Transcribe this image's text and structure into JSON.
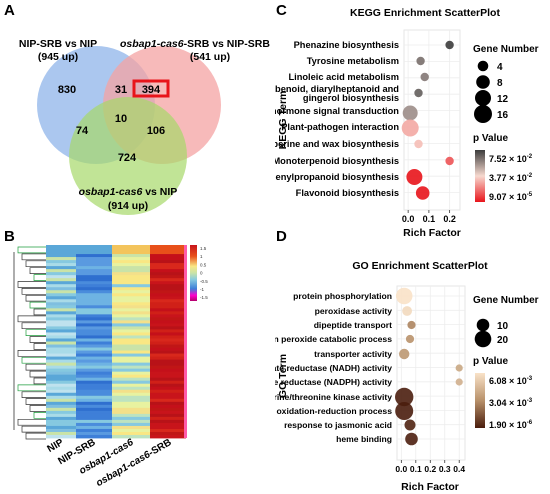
{
  "panels": {
    "A": "A",
    "B": "B",
    "C": "C",
    "D": "D"
  },
  "chart_data": [
    {
      "type": "venn",
      "panel": "A",
      "sets": [
        {
          "name_parts": [
            "NIP-SRB vs NIP"
          ],
          "count_label": "(945 up)",
          "color": "#8fb4ea"
        },
        {
          "name_parts": [
            "osbap1-cas6",
            "-SRB vs NIP-SRB"
          ],
          "count_label": "(541 up)",
          "color": "#f4a3a3"
        },
        {
          "name_parts": [
            "osbap1-cas6",
            " vs NIP"
          ],
          "count_label": "(914 up)",
          "color": "#a6d96a"
        }
      ],
      "regions": {
        "A_only": "830",
        "AB": "31",
        "B_only": "394",
        "ABC": "10",
        "AC": "74",
        "BC": "106",
        "C_only": "724"
      },
      "highlight_region": "B_only",
      "highlight_color": "#e8141b"
    },
    {
      "type": "heatmap",
      "panel": "B",
      "columns": [
        "NIP",
        "NIP-SRB",
        "osbap1-cas6",
        "osbap1-cas6-SRB"
      ],
      "column_italic": [
        false,
        false,
        true,
        "osbap1-cas6"
      ],
      "scale_ticks": [
        "1.5",
        "1",
        "0.5",
        "0",
        "-0.5",
        "-1",
        "-1.5"
      ],
      "colormap": [
        "#b3006b",
        "#ff00cc",
        "#3e7fd8",
        "#86c9e0",
        "#c9e3a8",
        "#f9e784",
        "#e8501a",
        "#c8141b"
      ],
      "dendrogram_color": "#1e9e3c"
    },
    {
      "type": "scatter",
      "panel": "C",
      "title": "KEGG Enrichment ScatterPlot",
      "xlabel": "Rich Factor",
      "ylabel": "KEGG Term",
      "xlim": [
        -0.02,
        0.25
      ],
      "xticks": [
        "0.0",
        "0.1",
        "0.2"
      ],
      "xtick_values": [
        0.0,
        0.1,
        0.2
      ],
      "terms": [
        "Phenazine biosynthesis",
        "Tyrosine metabolism",
        "Linoleic acid metabolism",
        "Stilbenoid, diarylheptanoid and",
        "gingerol biosynthesis",
        "Plant hormone signal transduction",
        "Plant-pathogen interaction",
        "Cutin,suberine and wax biosynthesis",
        "Monoterpenoid biosynthesis",
        "Phenylpropanoid biosynthesis",
        "Flavonoid biosynthesis"
      ],
      "points": [
        {
          "x": 0.2,
          "gene": 2,
          "p": 0.074
        },
        {
          "x": 0.06,
          "gene": 2,
          "p": 0.062
        },
        {
          "x": 0.08,
          "gene": 2,
          "p": 0.06
        },
        {
          "x": 0.05,
          "gene": 2,
          "p": 0.066
        },
        {
          "x": 0.01,
          "gene": 10,
          "p": 0.055
        },
        {
          "x": 0.01,
          "gene": 14,
          "p": 0.028
        },
        {
          "x": 0.05,
          "gene": 2,
          "p": 0.032
        },
        {
          "x": 0.2,
          "gene": 2,
          "p": 0.012
        },
        {
          "x": 0.03,
          "gene": 12,
          "p": 0.0001
        },
        {
          "x": 0.07,
          "gene": 8,
          "p": 0.0001
        }
      ],
      "size_legend_title": "Gene Number",
      "size_legend": [
        4,
        8,
        12,
        16
      ],
      "color_legend_title": "p Value",
      "color_legend_labels": [
        "7.52 × 10",
        "3.77 × 10",
        "9.07 × 10"
      ],
      "color_legend_exponents": [
        "-2",
        "-2",
        "-5"
      ],
      "color_low": "#e8141b",
      "color_mid": "#f7d9cf",
      "color_high": "#3c3c3c"
    },
    {
      "type": "scatter",
      "panel": "D",
      "title": "GO Enrichment ScatterPlot",
      "xlabel": "Rich Factor",
      "ylabel": "GO Term",
      "xlim": [
        -0.03,
        0.44
      ],
      "xticks": [
        "0.0",
        "0.1",
        "0.2",
        "0.3",
        "0.4"
      ],
      "xtick_values": [
        0.0,
        0.1,
        0.2,
        0.3,
        0.4
      ],
      "terms": [
        "protein phosphorylation",
        "peroxidase activity",
        "dipeptide transport",
        "hydrogen peroxide catabolic process",
        "transporter activity",
        "nitrate reductase (NADH) activity",
        "nitrate reductase (NADPH) activity",
        "protein serine/threonine kinase activity",
        "oxidation-reduction process",
        "response to jasmonic acid",
        "heme binding"
      ],
      "points": [
        {
          "x": 0.02,
          "gene": 20,
          "p": 0.0055
        },
        {
          "x": 0.04,
          "gene": 5,
          "p": 0.0052
        },
        {
          "x": 0.07,
          "gene": 3,
          "p": 0.0025
        },
        {
          "x": 0.06,
          "gene": 3,
          "p": 0.0028
        },
        {
          "x": 0.02,
          "gene": 6,
          "p": 0.003
        },
        {
          "x": 0.4,
          "gene": 2,
          "p": 0.0035
        },
        {
          "x": 0.4,
          "gene": 2,
          "p": 0.0038
        },
        {
          "x": 0.02,
          "gene": 25,
          "p": 8e-05
        },
        {
          "x": 0.02,
          "gene": 24,
          "p": 5e-05
        },
        {
          "x": 0.06,
          "gene": 7,
          "p": 0.0002
        },
        {
          "x": 0.07,
          "gene": 10,
          "p": 0.0001
        }
      ],
      "size_legend_title": "Gene Number",
      "size_legend": [
        10,
        20
      ],
      "color_legend_title": "p Value",
      "color_legend_labels": [
        "6.08 × 10",
        "3.04 × 10",
        "1.90 × 10"
      ],
      "color_legend_exponents": [
        "-3",
        "-3",
        "-6"
      ],
      "color_low": "#4a1d0d",
      "color_mid": "#b8916a",
      "color_high": "#f9e2c8"
    }
  ]
}
